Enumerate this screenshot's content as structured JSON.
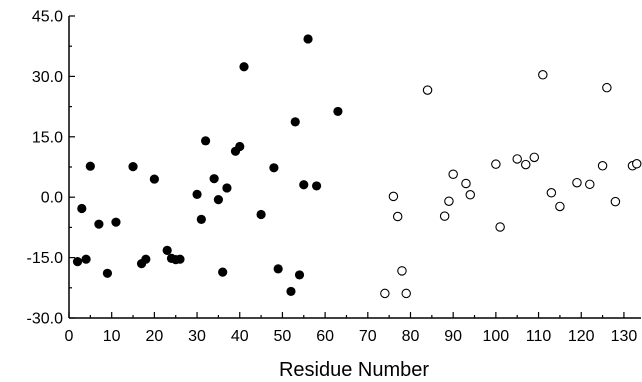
{
  "chart_data": {
    "type": "scatter",
    "title": "",
    "xlabel": "Residue Number",
    "ylabel": "",
    "xlim": [
      0,
      134
    ],
    "ylim": [
      -30,
      45
    ],
    "x_ticks": [
      "0",
      "10",
      "20",
      "30",
      "40",
      "50",
      "60",
      "70",
      "80",
      "90",
      "100",
      "110",
      "120",
      "130"
    ],
    "y_ticks": [
      "-30.0",
      "-15.0",
      "0.0",
      "15.0",
      "30.0",
      "45.0"
    ],
    "grid": false,
    "legend": "none",
    "series": [
      {
        "marker": "filled-circle",
        "color": "#000000",
        "points": [
          [
            2,
            -16.0
          ],
          [
            3,
            -2.8
          ],
          [
            4,
            -15.4
          ],
          [
            5,
            7.7
          ],
          [
            7,
            -6.7
          ],
          [
            9,
            -18.9
          ],
          [
            11,
            -6.2
          ],
          [
            15,
            7.6
          ],
          [
            17,
            -16.5
          ],
          [
            18,
            -15.4
          ],
          [
            20,
            4.5
          ],
          [
            23,
            -13.2
          ],
          [
            24,
            -15.2
          ],
          [
            25,
            -15.5
          ],
          [
            26,
            -15.4
          ],
          [
            30,
            0.7
          ],
          [
            31,
            -5.5
          ],
          [
            32,
            14.0
          ],
          [
            34,
            4.6
          ],
          [
            35,
            -0.6
          ],
          [
            36,
            -18.6
          ],
          [
            37,
            2.3
          ],
          [
            39,
            11.4
          ],
          [
            40,
            12.6
          ],
          [
            41,
            32.4
          ],
          [
            45,
            -4.3
          ],
          [
            48,
            7.3
          ],
          [
            49,
            -17.8
          ],
          [
            52,
            -23.4
          ],
          [
            53,
            18.7
          ],
          [
            54,
            -19.3
          ],
          [
            55,
            3.1
          ],
          [
            56,
            39.3
          ],
          [
            58,
            2.8
          ],
          [
            63,
            21.3
          ]
        ]
      },
      {
        "marker": "open-circle",
        "color": "#000000",
        "points": [
          [
            74,
            -23.9
          ],
          [
            76,
            0.2
          ],
          [
            77,
            -4.8
          ],
          [
            78,
            -18.3
          ],
          [
            79,
            -23.9
          ],
          [
            84,
            26.6
          ],
          [
            88,
            -4.7
          ],
          [
            89,
            -1.0
          ],
          [
            90,
            5.7
          ],
          [
            93,
            3.4
          ],
          [
            94,
            0.6
          ],
          [
            100,
            8.2
          ],
          [
            101,
            -7.4
          ],
          [
            105,
            9.5
          ],
          [
            107,
            8.1
          ],
          [
            109,
            9.9
          ],
          [
            111,
            30.4
          ],
          [
            113,
            1.1
          ],
          [
            115,
            -2.3
          ],
          [
            119,
            3.6
          ],
          [
            122,
            3.2
          ],
          [
            125,
            7.8
          ],
          [
            126,
            27.2
          ],
          [
            128,
            -1.1
          ],
          [
            132,
            7.8
          ],
          [
            133,
            8.3
          ]
        ]
      }
    ]
  }
}
